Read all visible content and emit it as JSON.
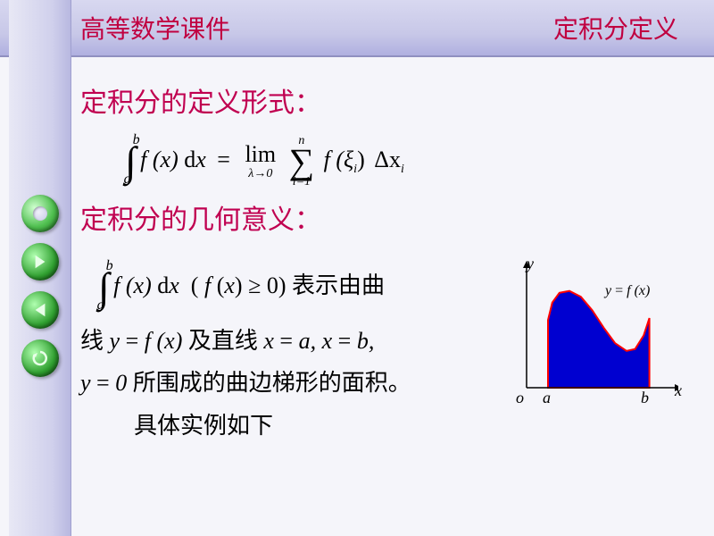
{
  "header": {
    "left": "高等数学课件",
    "right": "定积分定义"
  },
  "headings": {
    "h1": "定积分的定义形式：",
    "h2": "定积分的几何意义："
  },
  "formula_definition": {
    "integral_upper": "b",
    "integral_lower": "a",
    "integrand": "f (x) dx",
    "equals": "=",
    "limit_label": "lim",
    "limit_sub": "λ→0",
    "sum_upper": "n",
    "sum_lower": "i=1",
    "summand_f": "f (",
    "summand_xi": "ξ",
    "summand_i": "i",
    "summand_close": ")",
    "delta": "Δx",
    "delta_i": "i"
  },
  "geometric": {
    "integral_upper": "b",
    "integral_lower": "a",
    "integrand": "f (x) dx",
    "cond_open": "( f (x) ≥ 0)",
    "txt_represents": "表示由曲",
    "txt_line": "线",
    "curve_eq": "y = f (x)",
    "txt_andline": "及直线",
    "lines_eq": "x = a, x = b,",
    "y0": "y = 0",
    "txt_enclosed": "所围成的曲边梯形的面积。",
    "txt_example": "具体实例如下"
  },
  "chart": {
    "y_label": "y",
    "x_label": "x",
    "origin_label": "o",
    "a_label": "a",
    "b_label": "b",
    "curve_label_y": "y",
    "curve_label_eq": "=",
    "curve_label_fx": "f (x)",
    "axis_color": "#000000",
    "curve_stroke": "#ff0000",
    "fill_color": "#0000d0",
    "background": "#f5f5fa",
    "x_range": [
      0,
      10
    ],
    "y_range": [
      0,
      6
    ],
    "a_x": 1.5,
    "b_x": 8.6,
    "curve_points": [
      [
        1.5,
        0
      ],
      [
        1.5,
        3.5
      ],
      [
        1.8,
        4.4
      ],
      [
        2.3,
        4.9
      ],
      [
        3.0,
        5.0
      ],
      [
        3.8,
        4.7
      ],
      [
        4.6,
        4.0
      ],
      [
        5.4,
        3.1
      ],
      [
        6.2,
        2.3
      ],
      [
        7.0,
        1.9
      ],
      [
        7.6,
        2.0
      ],
      [
        8.2,
        2.7
      ],
      [
        8.6,
        3.6
      ],
      [
        8.6,
        0
      ]
    ]
  },
  "nav": {
    "buttons": [
      "home",
      "next",
      "prev",
      "reload"
    ]
  }
}
